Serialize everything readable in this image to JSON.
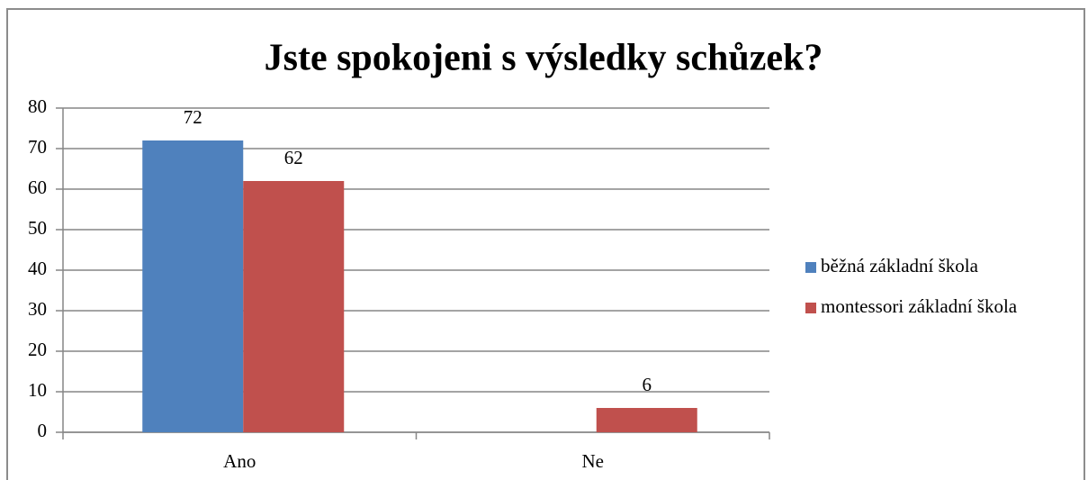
{
  "chart_data": {
    "type": "bar",
    "title": "Jste spokojeni s výsledky schůzek?",
    "categories": [
      "Ano",
      "Ne"
    ],
    "series": [
      {
        "name": "běžná základní škola",
        "color": "#4f81bd",
        "values": [
          72,
          null
        ]
      },
      {
        "name": "montessori základní škola",
        "color": "#c0504d",
        "values": [
          62,
          6
        ]
      }
    ],
    "ylim": [
      0,
      80
    ],
    "yticks": [
      0,
      10,
      20,
      30,
      40,
      50,
      60,
      70,
      80
    ],
    "grid": true,
    "legend": "right"
  }
}
